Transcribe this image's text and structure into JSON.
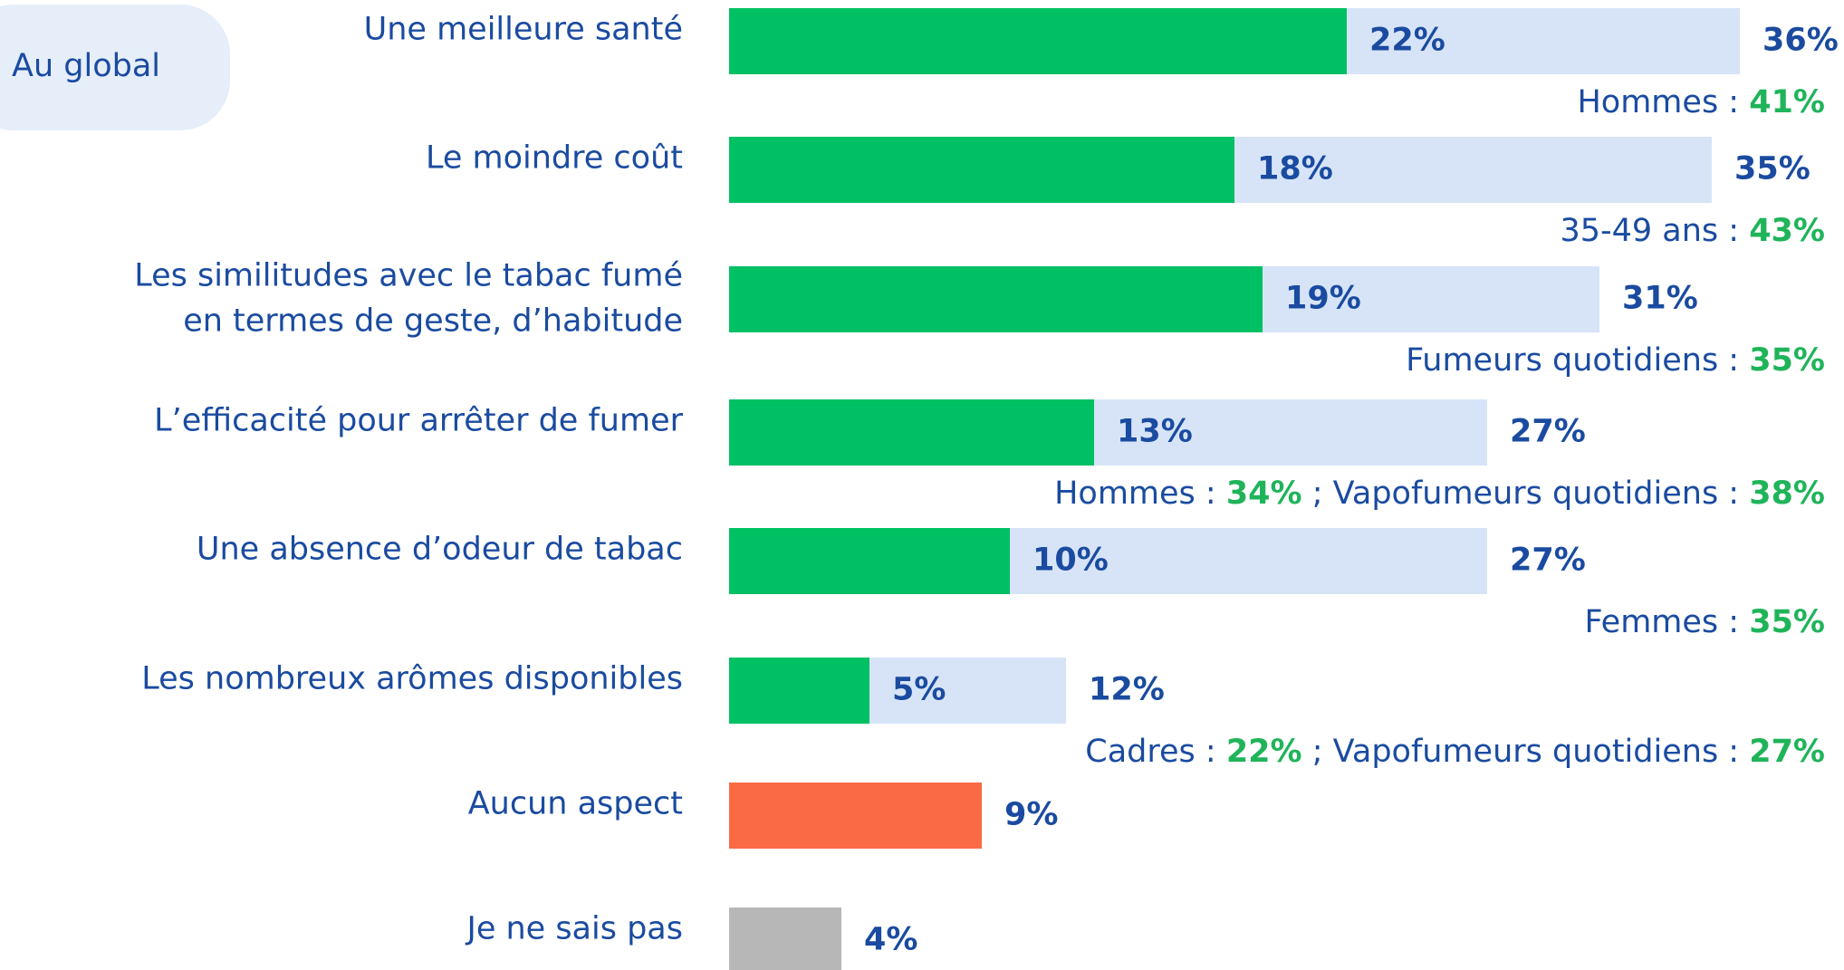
{
  "chart_data": {
    "type": "bar",
    "tag": "Au global",
    "categories": [
      "Une meilleure santé",
      "Le moindre coût",
      [
        "Les similitudes avec le tabac fumé",
        "en termes de geste, d’habitude"
      ],
      "L’efficacité pour arrêter de fumer",
      "Une absence d’odeur de tabac",
      "Les nombreux arômes disponibles",
      "Aucun aspect",
      "Je ne sais pas"
    ],
    "series": [
      {
        "values": [
          36,
          35,
          31,
          27,
          27,
          12,
          9,
          4
        ],
        "value_labels": [
          "36%",
          "35%",
          "31%",
          "27%",
          "27%",
          "12%",
          "9%",
          "4%"
        ],
        "colors": [
          "#d7e4f8",
          "#d7e4f8",
          "#d7e4f8",
          "#d7e4f8",
          "#d7e4f8",
          "#d7e4f8",
          "#f96a45",
          "#b7b7b7"
        ],
        "label_colors": [
          "#1a4ba0",
          "#1a4ba0",
          "#1a4ba0",
          "#1a4ba0",
          "#1a4ba0",
          "#1a4ba0",
          "#f96a45",
          "#1a4ba0"
        ]
      },
      {
        "values": [
          22,
          18,
          19,
          13,
          10,
          5,
          null,
          null
        ],
        "value_labels": [
          "22%",
          "18%",
          "19%",
          "13%",
          "10%",
          "5%",
          null,
          null
        ],
        "color": "#00c064",
        "label_color": "#1fb45a"
      }
    ],
    "notes": [
      [
        "Hommes : ",
        "41%"
      ],
      [
        "35-49 ans : ",
        "43%"
      ],
      [
        "Fumeurs quotidiens : ",
        "35%"
      ],
      [
        "Hommes : ",
        "34%",
        " ; Vapofumeurs quotidiens : ",
        "38%"
      ],
      [
        "Femmes : ",
        "35%"
      ],
      [
        "Cadres : ",
        "22%",
        " ; Vapofumeurs quotidiens : ",
        "27%"
      ],
      null,
      null
    ]
  }
}
